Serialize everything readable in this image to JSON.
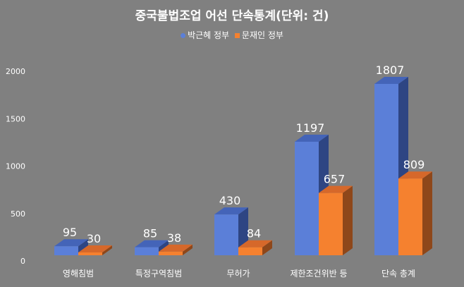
{
  "chart_data": {
    "type": "bar",
    "title": "중국불법조업 어선 단속통계(단위:  건)",
    "categories": [
      "영해침범",
      "특정구역침범",
      "무허가",
      "제한조건위반 등",
      "단속 총계"
    ],
    "series": [
      {
        "name": "박근혜 정부",
        "values": [
          95,
          85,
          430,
          1197,
          1807
        ],
        "color": "#5b7fd8",
        "top": "#4464b8",
        "side": "#2e4583"
      },
      {
        "name": "문재인 정부",
        "values": [
          30,
          38,
          84,
          657,
          809
        ],
        "color": "#f5812f",
        "top": "#d6682a",
        "side": "#8e471a"
      }
    ],
    "ylim": [
      0,
      2000
    ],
    "yticks": [
      0,
      500,
      1000,
      1500,
      2000
    ],
    "xlabel": "",
    "ylabel": "",
    "grid": false,
    "legend": "top-center",
    "style": "3d-clustered-column"
  }
}
